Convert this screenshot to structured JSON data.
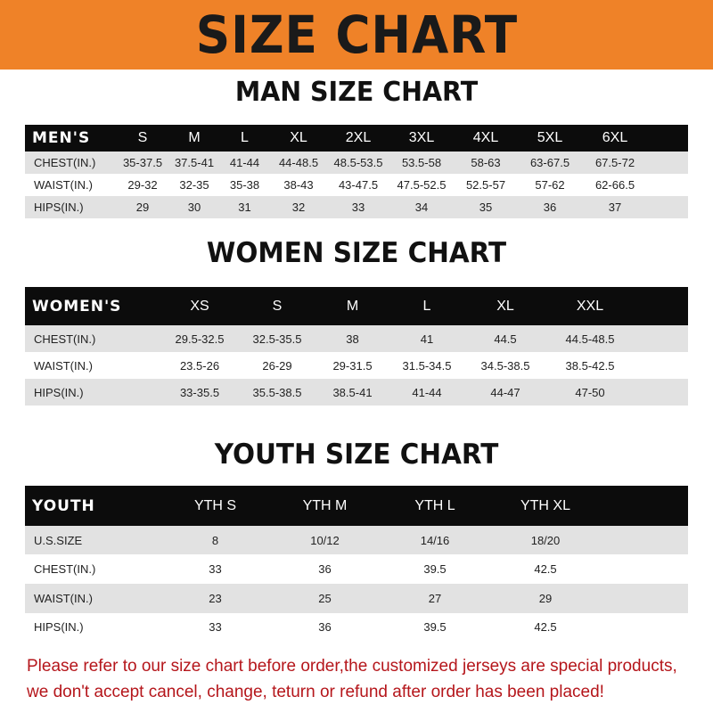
{
  "banner_title": "SIZE CHART",
  "men": {
    "title": "MAN SIZE CHART",
    "header": [
      "MEN'S",
      "S",
      "M",
      "L",
      "XL",
      "2XL",
      "3XL",
      "4XL",
      "5XL",
      "6XL"
    ],
    "rows": [
      [
        "CHEST(IN.)",
        "35-37.5",
        "37.5-41",
        "41-44",
        "44-48.5",
        "48.5-53.5",
        "53.5-58",
        "58-63",
        "63-67.5",
        "67.5-72"
      ],
      [
        "WAIST(IN.)",
        "29-32",
        "32-35",
        "35-38",
        "38-43",
        "43-47.5",
        "47.5-52.5",
        "52.5-57",
        "57-62",
        "62-66.5"
      ],
      [
        "HIPS(IN.)",
        "29",
        "30",
        "31",
        "32",
        "33",
        "34",
        "35",
        "36",
        "37"
      ]
    ]
  },
  "women": {
    "title": "WOMEN SIZE CHART",
    "header": [
      "WOMEN'S",
      "XS",
      "S",
      "M",
      "L",
      "XL",
      "XXL"
    ],
    "rows": [
      [
        "CHEST(IN.)",
        "29.5-32.5",
        "32.5-35.5",
        "38",
        "41",
        "44.5",
        "44.5-48.5"
      ],
      [
        "WAIST(IN.)",
        "23.5-26",
        "26-29",
        "29-31.5",
        "31.5-34.5",
        "34.5-38.5",
        "38.5-42.5"
      ],
      [
        "HIPS(IN.)",
        "33-35.5",
        "35.5-38.5",
        "38.5-41",
        "41-44",
        "44-47",
        "47-50"
      ]
    ]
  },
  "youth": {
    "title": "YOUTH SIZE CHART",
    "header": [
      "YOUTH",
      "YTH S",
      "YTH M",
      "YTH L",
      "YTH XL"
    ],
    "rows": [
      [
        "U.S.SIZE",
        "8",
        "10/12",
        "14/16",
        "18/20"
      ],
      [
        "CHEST(IN.)",
        "33",
        "36",
        "39.5",
        "42.5"
      ],
      [
        "WAIST(IN.)",
        "23",
        "25",
        "27",
        "29"
      ],
      [
        "HIPS(IN.)",
        "33",
        "36",
        "39.5",
        "42.5"
      ]
    ]
  },
  "footer": [
    "Please refer to our size chart before order,the customized jerseys are special products,",
    "we don't accept cancel, change, teturn or refund after order has been placed!"
  ],
  "colors": {
    "banner": "#ef8228",
    "header_row": "#0c0c0c",
    "stripe": "#e2e2e2",
    "notice": "#b5161b"
  }
}
